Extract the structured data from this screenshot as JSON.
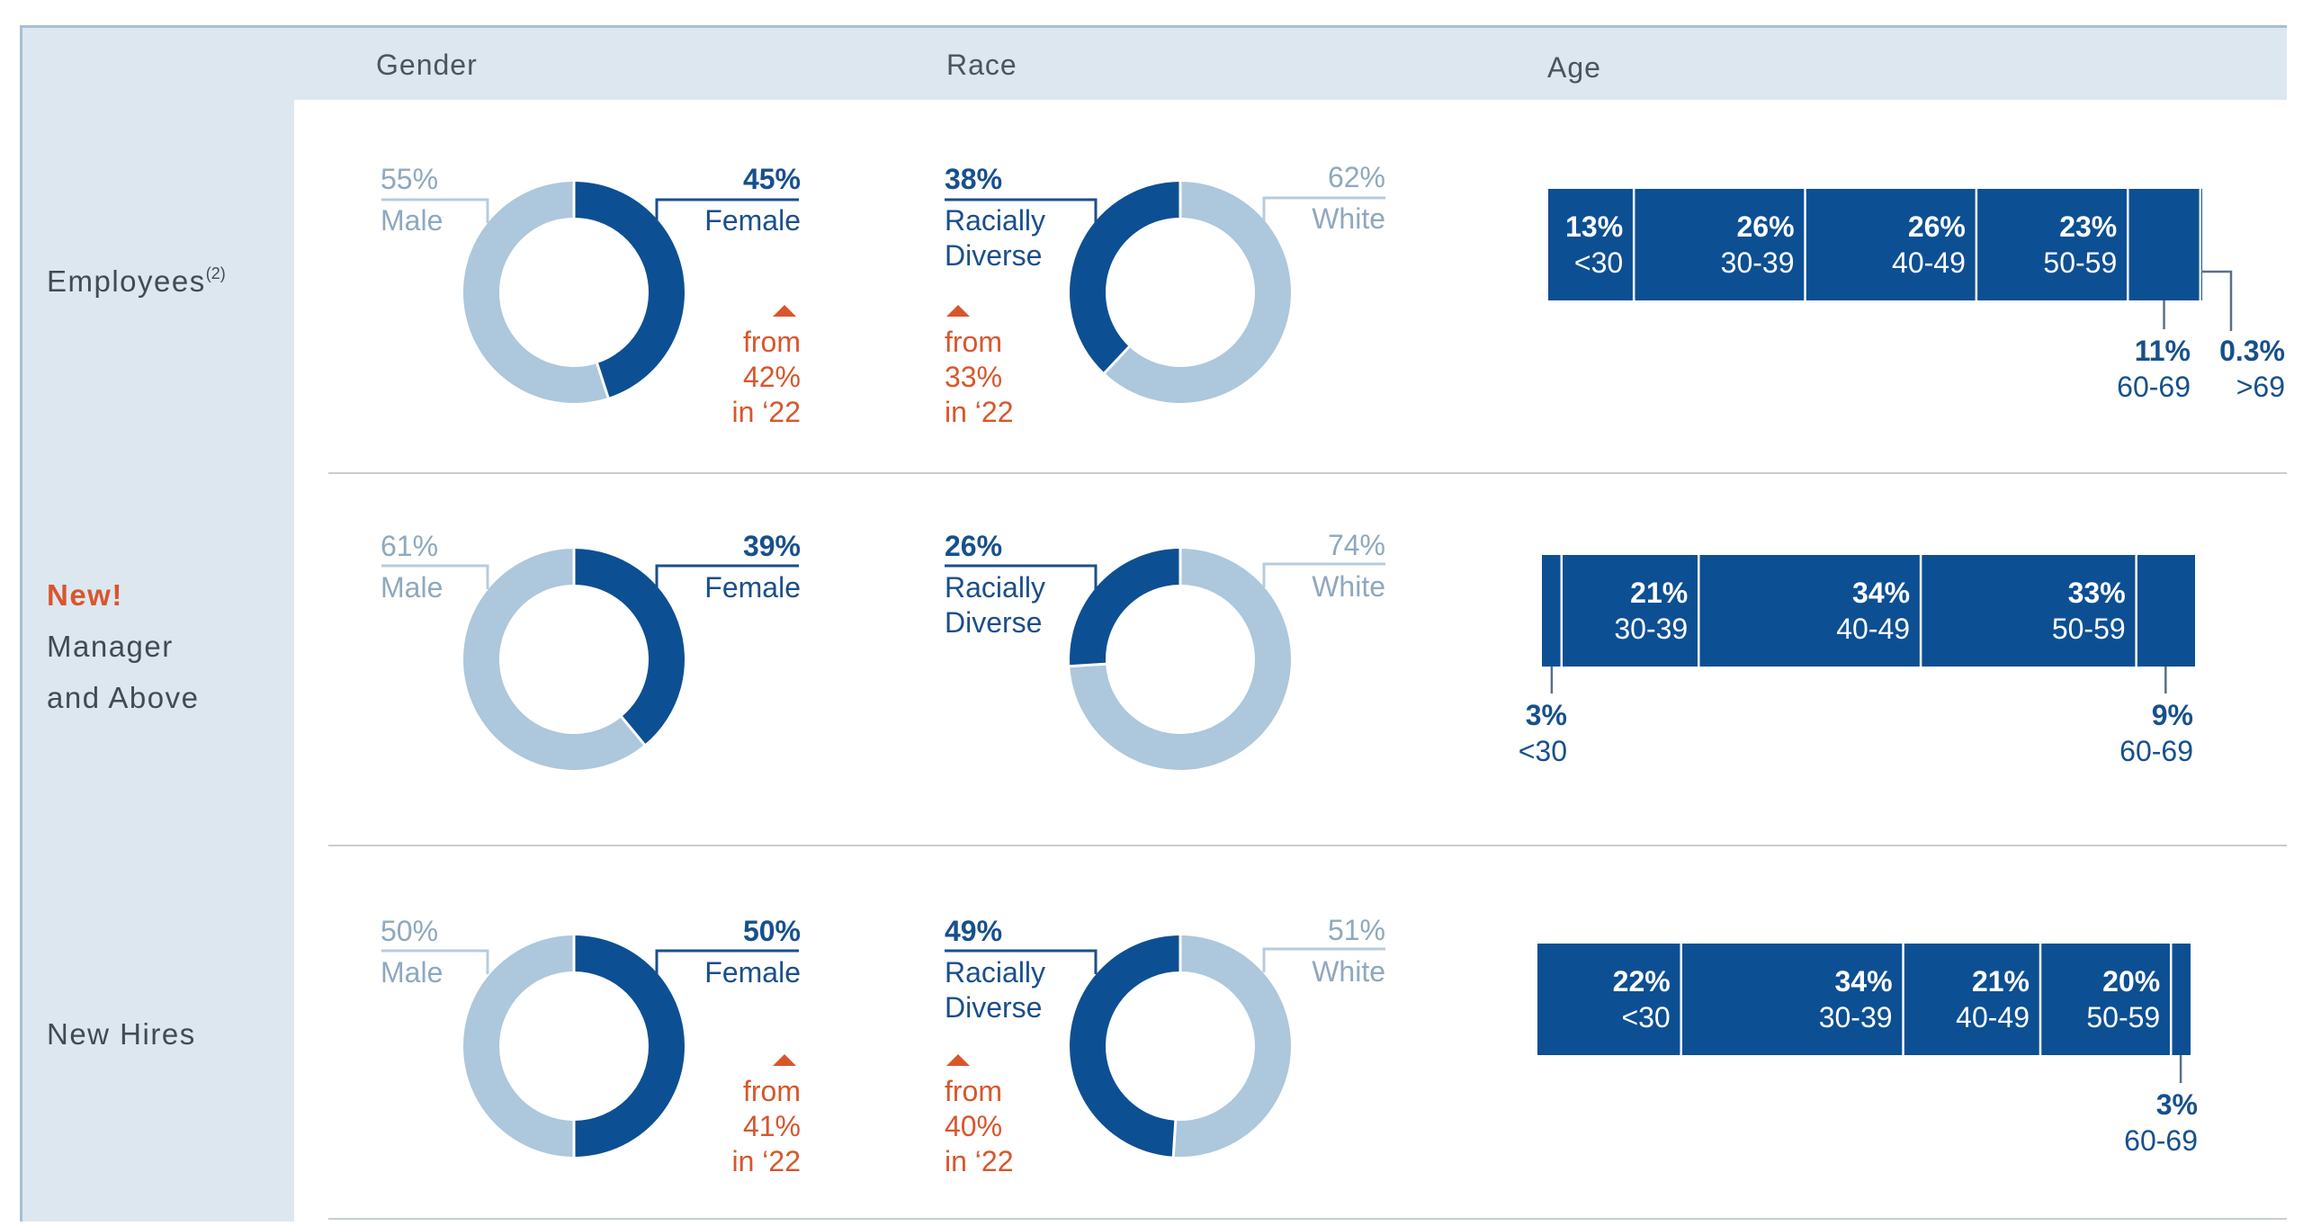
{
  "headers": {
    "gender": "Gender",
    "race": "Race",
    "age": "Age"
  },
  "rows": {
    "employees": {
      "label": "Employees",
      "sup": "(2)"
    },
    "managers": {
      "tag": "New!",
      "line1": "Manager",
      "line2": "and Above"
    },
    "newhires": {
      "label": "New Hires"
    }
  },
  "text": {
    "e_g_male_pct": "55%",
    "e_g_male": "Male",
    "e_g_female_pct": "45%",
    "e_g_female": "Female",
    "e_g_from": "from",
    "e_g_from_val": "42%",
    "e_g_in": "in ‘22",
    "e_r_div_pct": "38%",
    "e_r_div1": "Racially",
    "e_r_div2": "Diverse",
    "e_r_white_pct": "62%",
    "e_r_white": "White",
    "e_r_from": "from",
    "e_r_from_val": "33%",
    "e_r_in": "in ‘22",
    "m_g_male_pct": "61%",
    "m_g_male": "Male",
    "m_g_female_pct": "39%",
    "m_g_female": "Female",
    "m_r_div_pct": "26%",
    "m_r_div1": "Racially",
    "m_r_div2": "Diverse",
    "m_r_white_pct": "74%",
    "m_r_white": "White",
    "n_g_male_pct": "50%",
    "n_g_male": "Male",
    "n_g_female_pct": "50%",
    "n_g_female": "Female",
    "n_g_from": "from",
    "n_g_from_val": "41%",
    "n_g_in": "in ‘22",
    "n_r_div_pct": "49%",
    "n_r_div1": "Racially",
    "n_r_div2": "Diverse",
    "n_r_white_pct": "51%",
    "n_r_white": "White",
    "n_r_from": "from",
    "n_r_from_val": "40%",
    "n_r_in": "in ‘22"
  },
  "chart_data": [
    {
      "type": "pie",
      "group": "Employees",
      "dimension": "Gender",
      "donut": true,
      "series": [
        {
          "name": "Female",
          "value": 45,
          "color": "#0d4f93"
        },
        {
          "name": "Male",
          "value": 55,
          "color": "#adc7dc"
        }
      ],
      "annotation": "up from 42% in ‘22"
    },
    {
      "type": "pie",
      "group": "Employees",
      "dimension": "Race",
      "donut": true,
      "series": [
        {
          "name": "Racially Diverse",
          "value": 38,
          "color": "#0d4f93"
        },
        {
          "name": "White",
          "value": 62,
          "color": "#adc7dc"
        }
      ],
      "annotation": "up from 33% in ‘22"
    },
    {
      "type": "bar",
      "group": "Employees",
      "dimension": "Age",
      "stacked": true,
      "orientation": "horizontal",
      "categories": [
        "<30",
        "30-39",
        "40-49",
        "50-59",
        "60-69",
        ">69"
      ],
      "values": [
        13,
        26,
        26,
        23,
        11,
        0.3
      ],
      "unit": "%",
      "color": "#0d4f93"
    },
    {
      "type": "pie",
      "group": "Manager and Above",
      "dimension": "Gender",
      "donut": true,
      "series": [
        {
          "name": "Female",
          "value": 39,
          "color": "#0d4f93"
        },
        {
          "name": "Male",
          "value": 61,
          "color": "#adc7dc"
        }
      ]
    },
    {
      "type": "pie",
      "group": "Manager and Above",
      "dimension": "Race",
      "donut": true,
      "series": [
        {
          "name": "Racially Diverse",
          "value": 26,
          "color": "#0d4f93"
        },
        {
          "name": "White",
          "value": 74,
          "color": "#adc7dc"
        }
      ]
    },
    {
      "type": "bar",
      "group": "Manager and Above",
      "dimension": "Age",
      "stacked": true,
      "orientation": "horizontal",
      "categories": [
        "<30",
        "30-39",
        "40-49",
        "50-59",
        "60-69"
      ],
      "values": [
        3,
        21,
        34,
        33,
        9
      ],
      "unit": "%",
      "color": "#0d4f93"
    },
    {
      "type": "pie",
      "group": "New Hires",
      "dimension": "Gender",
      "donut": true,
      "series": [
        {
          "name": "Female",
          "value": 50,
          "color": "#0d4f93"
        },
        {
          "name": "Male",
          "value": 50,
          "color": "#adc7dc"
        }
      ],
      "annotation": "up from 41% in ‘22"
    },
    {
      "type": "pie",
      "group": "New Hires",
      "dimension": "Race",
      "donut": true,
      "series": [
        {
          "name": "Racially Diverse",
          "value": 49,
          "color": "#0d4f93"
        },
        {
          "name": "White",
          "value": 51,
          "color": "#adc7dc"
        }
      ],
      "annotation": "up from 40% in ‘22"
    },
    {
      "type": "bar",
      "group": "New Hires",
      "dimension": "Age",
      "stacked": true,
      "orientation": "horizontal",
      "categories": [
        "<30",
        "30-39",
        "40-49",
        "50-59",
        "60-69"
      ],
      "values": [
        22,
        34,
        21,
        20,
        3
      ],
      "unit": "%",
      "color": "#0d4f93"
    }
  ]
}
